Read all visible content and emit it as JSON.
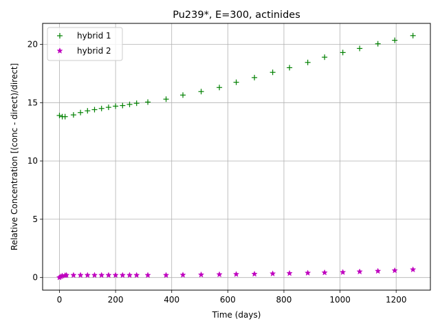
{
  "chart_data": {
    "type": "scatter",
    "title": "Pu239*, E=300, actinides",
    "xlabel": "Time (days)",
    "ylabel": "Relative Concentration [(conc - direct)/direct]",
    "xlim": [
      -60,
      1322
    ],
    "ylim": [
      -1.08,
      21.8
    ],
    "xticks": [
      0,
      200,
      400,
      600,
      800,
      1000,
      1200
    ],
    "yticks": [
      0,
      5,
      10,
      15,
      20
    ],
    "grid": true,
    "legend": "top-left",
    "series": [
      {
        "name": "hybrid 1",
        "marker": "+",
        "color": "#008000",
        "x": [
          0,
          10,
          20,
          50,
          75,
          100,
          125,
          150,
          175,
          200,
          225,
          250,
          275,
          315,
          380,
          440,
          505,
          570,
          630,
          695,
          760,
          820,
          885,
          945,
          1010,
          1070,
          1135,
          1195,
          1260
        ],
        "y": [
          13.9,
          13.8,
          13.8,
          13.95,
          14.15,
          14.3,
          14.4,
          14.5,
          14.6,
          14.7,
          14.75,
          14.85,
          14.95,
          15.05,
          15.3,
          15.65,
          15.95,
          16.3,
          16.75,
          17.15,
          17.6,
          18.0,
          18.45,
          18.9,
          19.3,
          19.65,
          20.05,
          20.35,
          20.75
        ]
      },
      {
        "name": "hybrid 2",
        "marker": "*",
        "color": "#bf00bf",
        "x": [
          0,
          5,
          10,
          20,
          25,
          50,
          75,
          100,
          125,
          150,
          175,
          200,
          225,
          250,
          275,
          315,
          380,
          440,
          505,
          570,
          630,
          695,
          760,
          820,
          885,
          945,
          1010,
          1070,
          1135,
          1195,
          1260
        ],
        "y": [
          0.0,
          0.08,
          0.14,
          0.18,
          0.2,
          0.2,
          0.2,
          0.2,
          0.2,
          0.2,
          0.2,
          0.2,
          0.2,
          0.2,
          0.2,
          0.2,
          0.2,
          0.22,
          0.24,
          0.26,
          0.28,
          0.3,
          0.33,
          0.36,
          0.39,
          0.42,
          0.45,
          0.5,
          0.55,
          0.6,
          0.68
        ]
      }
    ]
  }
}
